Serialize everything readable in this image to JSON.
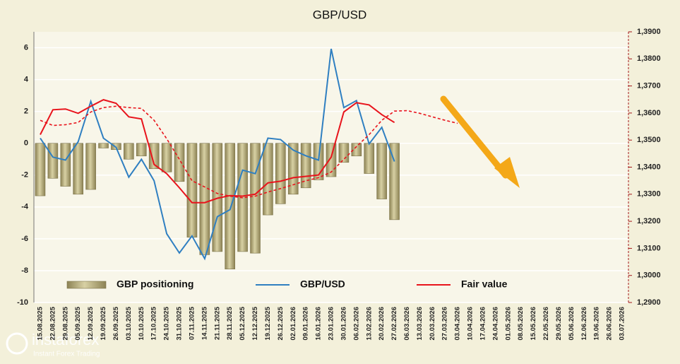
{
  "chart_data": {
    "type": "bar-line",
    "title": "GBP/USD",
    "categories": [
      "15.08.2025",
      "22.08.2025",
      "29.08.2025",
      "05.09.2025",
      "12.09.2025",
      "19.09.2025",
      "26.09.2025",
      "03.10.2025",
      "10.10.2025",
      "17.10.2025",
      "24.10.2025",
      "31.10.2025",
      "07.11.2025",
      "14.11.2025",
      "21.11.2025",
      "28.11.2025",
      "05.12.2025",
      "12.12.2025",
      "19.12.2025",
      "26.12.2025",
      "02.01.2026",
      "09.01.2026",
      "16.01.2026",
      "23.01.2026",
      "30.01.2026",
      "06.02.2026",
      "13.02.2026",
      "20.02.2026",
      "27.02.2026",
      "06.03.2026",
      "13.03.2026",
      "20.03.2026",
      "27.03.2026",
      "03.04.2026",
      "10.04.2026",
      "17.04.2026",
      "24.04.2026",
      "01.05.2026",
      "08.05.2026",
      "15.05.2026",
      "22.05.2026",
      "29.05.2026",
      "05.06.2026",
      "12.06.2026",
      "19.06.2026",
      "26.06.2026",
      "03.07.2026"
    ],
    "series": [
      {
        "name": "GBP positioning",
        "type": "bar",
        "color": "#b5ab78",
        "values": [
          -3.3,
          -2.2,
          -2.7,
          -3.2,
          -2.9,
          -0.3,
          -0.4,
          -1.0,
          -0.8,
          -1.6,
          -1.8,
          -2.4,
          -5.9,
          -7.0,
          -6.8,
          -7.9,
          -6.8,
          -6.9,
          -4.5,
          -3.8,
          -3.2,
          -2.8,
          -2.3,
          -2.1,
          -1.2,
          -0.8,
          -1.9,
          -3.5,
          -4.8,
          null,
          null,
          null,
          null,
          null,
          null,
          null,
          null,
          null,
          null,
          null,
          null,
          null,
          null,
          null,
          null,
          null,
          null
        ]
      },
      {
        "name": "GBP/USD",
        "type": "line",
        "axis": "y2",
        "color": "#2f7fc1",
        "values": [
          1.3507,
          1.3437,
          1.3426,
          1.3494,
          1.3643,
          1.3507,
          1.3473,
          1.3363,
          1.3429,
          1.335,
          1.3154,
          1.3083,
          1.3146,
          1.3062,
          1.3217,
          1.3243,
          1.3389,
          1.3376,
          1.3507,
          1.3502,
          1.3463,
          1.3442,
          1.3426,
          1.3837,
          1.362,
          1.3646,
          1.3486,
          1.3547,
          1.3421,
          null,
          null,
          null,
          null,
          null,
          null,
          null,
          null,
          null,
          null,
          null,
          null,
          null,
          null,
          null,
          null,
          null,
          null
        ]
      },
      {
        "name": "Fair value",
        "type": "line",
        "axis": "y2",
        "color": "#e8141c",
        "values": [
          1.352,
          1.3612,
          1.3615,
          1.3599,
          1.3625,
          1.3649,
          1.3636,
          1.3586,
          1.3578,
          1.341,
          1.3376,
          1.3324,
          1.3269,
          1.3269,
          1.3285,
          1.3295,
          1.3293,
          1.33,
          1.3342,
          1.3348,
          1.3361,
          1.3366,
          1.3371,
          1.3437,
          1.3604,
          1.3638,
          1.363,
          1.3594,
          1.3565,
          null,
          null,
          null,
          null,
          null,
          null,
          null,
          null,
          null,
          null,
          null,
          null,
          null,
          null,
          null,
          null,
          null,
          null
        ]
      },
      {
        "type": "line",
        "axis": "y2",
        "color": "#e8141c",
        "dash": true,
        "values": [
          1.3573,
          1.3554,
          1.3557,
          1.3565,
          1.3604,
          1.362,
          1.3625,
          1.362,
          1.3617,
          1.3573,
          1.3505,
          1.3429,
          1.335,
          1.3327,
          1.3303,
          1.3293,
          1.3287,
          1.3293,
          1.3308,
          1.3321,
          1.3335,
          1.335,
          1.3361,
          1.3382,
          1.3429,
          1.3476,
          1.352,
          1.3573,
          1.3607,
          1.3609,
          1.3599,
          1.3586,
          1.3573,
          1.3562,
          null,
          null,
          null,
          null,
          null,
          null,
          null,
          null,
          null,
          null,
          null,
          null,
          null
        ]
      }
    ],
    "ylim": [
      -10,
      7
    ],
    "yticks": [
      -10,
      -8,
      -6,
      -4,
      -2,
      0,
      2,
      4,
      6
    ],
    "y2lim": [
      1.29,
      1.39
    ],
    "y2ticks": [
      {
        "value": 1.29,
        "label": "1,2900"
      },
      {
        "value": 1.3,
        "label": "1,3000"
      },
      {
        "value": 1.31,
        "label": "1,3100"
      },
      {
        "value": 1.32,
        "label": "1,3200"
      },
      {
        "value": 1.33,
        "label": "1,3300"
      },
      {
        "value": 1.34,
        "label": "1,3400"
      },
      {
        "value": 1.35,
        "label": "1,3500"
      },
      {
        "value": 1.36,
        "label": "1,3600"
      },
      {
        "value": 1.37,
        "label": "1,3700"
      },
      {
        "value": 1.38,
        "label": "1,3800"
      },
      {
        "value": 1.39,
        "label": "1,3900"
      }
    ],
    "grid": true,
    "legend": "bottom"
  },
  "watermark": {
    "brand": "instaforex",
    "tagline": "Instant Forex Trading"
  }
}
